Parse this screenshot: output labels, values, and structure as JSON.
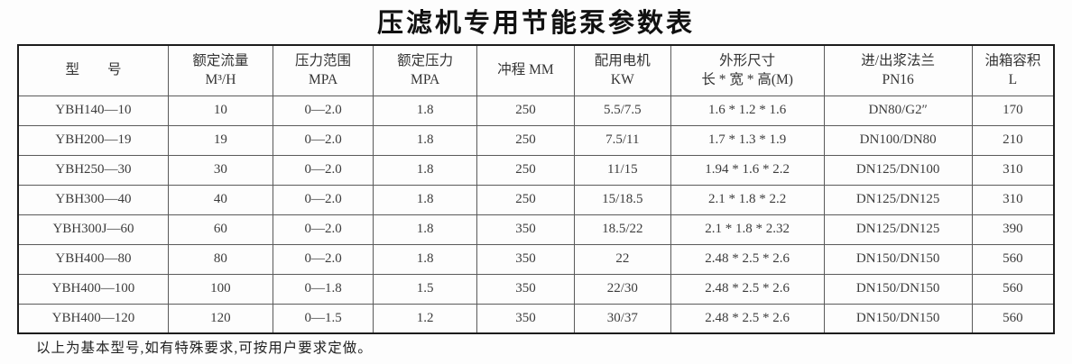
{
  "title": "压滤机专用节能泵参数表",
  "table": {
    "columns": [
      {
        "line1": "型　　号",
        "line2": ""
      },
      {
        "line1": "额定流量",
        "line2": "M³/H"
      },
      {
        "line1": "压力范围",
        "line2": "MPA"
      },
      {
        "line1": "额定压力",
        "line2": "MPA"
      },
      {
        "line1": "冲程 MM",
        "line2": ""
      },
      {
        "line1": "配用电机",
        "line2": "KW"
      },
      {
        "line1": "外形尺寸",
        "line2": "长 * 宽 * 高(M)"
      },
      {
        "line1": "进/出浆法兰",
        "line2": "PN16"
      },
      {
        "line1": "油箱容积",
        "line2": "L"
      }
    ],
    "rows": [
      [
        "YBH140—10",
        "10",
        "0—2.0",
        "1.8",
        "250",
        "5.5/7.5",
        "1.6 * 1.2 * 1.6",
        "DN80/G2″",
        "170"
      ],
      [
        "YBH200—19",
        "19",
        "0—2.0",
        "1.8",
        "250",
        "7.5/11",
        "1.7 * 1.3 * 1.9",
        "DN100/DN80",
        "210"
      ],
      [
        "YBH250—30",
        "30",
        "0—2.0",
        "1.8",
        "250",
        "11/15",
        "1.94 * 1.6 * 2.2",
        "DN125/DN100",
        "310"
      ],
      [
        "YBH300—40",
        "40",
        "0—2.0",
        "1.8",
        "250",
        "15/18.5",
        "2.1 * 1.8 * 2.2",
        "DN125/DN125",
        "310"
      ],
      [
        "YBH300J—60",
        "60",
        "0—2.0",
        "1.8",
        "350",
        "18.5/22",
        "2.1 * 1.8 * 2.32",
        "DN125/DN125",
        "390"
      ],
      [
        "YBH400—80",
        "80",
        "0—2.0",
        "1.8",
        "350",
        "22",
        "2.48 * 2.5 * 2.6",
        "DN150/DN150",
        "560"
      ],
      [
        "YBH400—100",
        "100",
        "0—1.8",
        "1.5",
        "350",
        "22/30",
        "2.48 * 2.5 * 2.6",
        "DN150/DN150",
        "560"
      ],
      [
        "YBH400—120",
        "120",
        "0—1.5",
        "1.2",
        "350",
        "30/37",
        "2.48 * 2.5 * 2.6",
        "DN150/DN150",
        "560"
      ]
    ]
  },
  "footnote": "以上为基本型号,如有特殊要求,可按用户要求定做。",
  "colors": {
    "border_outer": "#1c1c1c",
    "border_inner": "#5a5a5a",
    "text": "#3c3c3c",
    "background": "#fdfdfd"
  }
}
